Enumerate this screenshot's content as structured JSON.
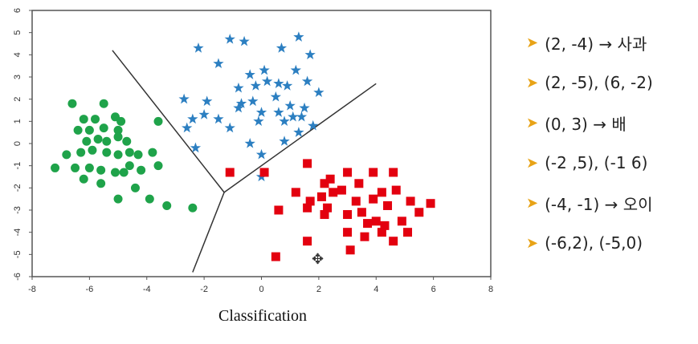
{
  "chart_data": {
    "type": "scatter",
    "title": "",
    "xlabel": "Classification",
    "ylabel": "",
    "xlim": [
      -8,
      8
    ],
    "ylim": [
      -6,
      6
    ],
    "xticks": [
      "-8",
      "-6",
      "-4",
      "-2",
      "0",
      "2",
      "4",
      "6",
      "8"
    ],
    "yticks": [
      "-6",
      "-5",
      "-4",
      "-3",
      "-2",
      "-1",
      "0",
      "1",
      "2",
      "3",
      "4",
      "5",
      "6"
    ],
    "grid": false,
    "series": [
      {
        "marker": "circle",
        "color": "#1fa34a",
        "points": [
          [
            -6.6,
            1.8
          ],
          [
            -5.5,
            1.8
          ],
          [
            -6.2,
            1.1
          ],
          [
            -5.8,
            1.1
          ],
          [
            -5.1,
            1.2
          ],
          [
            -6.4,
            0.6
          ],
          [
            -6.0,
            0.6
          ],
          [
            -5.5,
            0.7
          ],
          [
            -5.0,
            0.6
          ],
          [
            -6.1,
            0.1
          ],
          [
            -5.7,
            0.2
          ],
          [
            -5.4,
            0.1
          ],
          [
            -5.0,
            0.3
          ],
          [
            -4.7,
            0.1
          ],
          [
            -6.3,
            -0.4
          ],
          [
            -5.9,
            -0.3
          ],
          [
            -5.4,
            -0.4
          ],
          [
            -5.0,
            -0.5
          ],
          [
            -4.6,
            -0.4
          ],
          [
            -4.3,
            -0.5
          ],
          [
            -7.2,
            -1.1
          ],
          [
            -6.5,
            -1.1
          ],
          [
            -6.0,
            -1.1
          ],
          [
            -5.6,
            -1.2
          ],
          [
            -5.1,
            -1.3
          ],
          [
            -4.8,
            -1.3
          ],
          [
            -4.6,
            -1.0
          ],
          [
            -3.8,
            -0.4
          ],
          [
            -3.6,
            -1.0
          ],
          [
            -6.2,
            -1.6
          ],
          [
            -5.6,
            -1.8
          ],
          [
            -4.4,
            -2.0
          ],
          [
            -5.0,
            -2.5
          ],
          [
            -3.9,
            -2.5
          ],
          [
            -3.3,
            -2.8
          ],
          [
            -2.4,
            -2.9
          ],
          [
            -3.6,
            1.0
          ],
          [
            -6.8,
            -0.5
          ],
          [
            -4.9,
            1.0
          ],
          [
            -4.2,
            -1.2
          ]
        ]
      },
      {
        "marker": "star",
        "color": "#2c7fc1",
        "points": [
          [
            -1.1,
            4.7
          ],
          [
            -0.6,
            4.6
          ],
          [
            -2.2,
            4.3
          ],
          [
            -1.5,
            3.6
          ],
          [
            0.1,
            3.3
          ],
          [
            0.7,
            4.3
          ],
          [
            1.3,
            4.8
          ],
          [
            1.7,
            4.0
          ],
          [
            1.2,
            3.3
          ],
          [
            -0.4,
            3.1
          ],
          [
            0.2,
            2.8
          ],
          [
            0.6,
            2.7
          ],
          [
            0.9,
            2.6
          ],
          [
            -0.8,
            2.5
          ],
          [
            -0.2,
            2.6
          ],
          [
            1.6,
            2.8
          ],
          [
            2.0,
            2.3
          ],
          [
            -2.7,
            2.0
          ],
          [
            -1.9,
            1.9
          ],
          [
            -0.7,
            1.8
          ],
          [
            -0.3,
            1.9
          ],
          [
            0.5,
            2.1
          ],
          [
            1.0,
            1.7
          ],
          [
            1.5,
            1.6
          ],
          [
            -0.8,
            1.6
          ],
          [
            -2.0,
            1.3
          ],
          [
            0.0,
            1.4
          ],
          [
            0.6,
            1.4
          ],
          [
            1.1,
            1.2
          ],
          [
            1.4,
            1.2
          ],
          [
            -2.4,
            1.1
          ],
          [
            -1.5,
            1.1
          ],
          [
            -0.1,
            1.0
          ],
          [
            0.8,
            1.0
          ],
          [
            1.8,
            0.8
          ],
          [
            -2.6,
            0.7
          ],
          [
            -1.1,
            0.7
          ],
          [
            1.3,
            0.5
          ],
          [
            -0.4,
            0.0
          ],
          [
            0.8,
            0.1
          ],
          [
            -2.3,
            -0.2
          ],
          [
            0.0,
            -0.5
          ],
          [
            0.0,
            -1.5
          ]
        ]
      },
      {
        "marker": "square",
        "color": "#e3000f",
        "points": [
          [
            -1.1,
            -1.3
          ],
          [
            0.1,
            -1.3
          ],
          [
            1.6,
            -0.9
          ],
          [
            2.2,
            -1.8
          ],
          [
            3.0,
            -1.3
          ],
          [
            3.9,
            -1.3
          ],
          [
            4.6,
            -1.3
          ],
          [
            1.2,
            -2.2
          ],
          [
            2.4,
            -1.6
          ],
          [
            2.8,
            -2.1
          ],
          [
            3.4,
            -1.8
          ],
          [
            2.1,
            -2.4
          ],
          [
            2.5,
            -2.2
          ],
          [
            4.2,
            -2.2
          ],
          [
            4.7,
            -2.1
          ],
          [
            0.6,
            -3.0
          ],
          [
            1.7,
            -2.6
          ],
          [
            2.3,
            -2.9
          ],
          [
            3.3,
            -2.6
          ],
          [
            3.9,
            -2.5
          ],
          [
            4.4,
            -2.8
          ],
          [
            5.2,
            -2.6
          ],
          [
            5.9,
            -2.7
          ],
          [
            1.6,
            -2.9
          ],
          [
            2.2,
            -3.2
          ],
          [
            3.0,
            -3.2
          ],
          [
            3.5,
            -3.1
          ],
          [
            4.0,
            -3.5
          ],
          [
            4.3,
            -3.7
          ],
          [
            3.7,
            -3.6
          ],
          [
            4.9,
            -3.5
          ],
          [
            5.5,
            -3.1
          ],
          [
            3.0,
            -4.0
          ],
          [
            3.6,
            -4.2
          ],
          [
            4.2,
            -4.0
          ],
          [
            5.1,
            -4.0
          ],
          [
            4.6,
            -4.4
          ],
          [
            1.6,
            -4.4
          ],
          [
            3.1,
            -4.8
          ],
          [
            0.5,
            -5.1
          ]
        ]
      }
    ],
    "boundaries": [
      [
        [
          -5.2,
          4.2
        ],
        [
          -1.3,
          -2.2
        ]
      ],
      [
        [
          -1.3,
          -2.2
        ],
        [
          4.0,
          2.7
        ]
      ],
      [
        [
          -1.3,
          -2.2
        ],
        [
          -2.4,
          -5.8
        ]
      ]
    ]
  },
  "bullets": [
    {
      "text": "(2, -4) → 사과"
    },
    {
      "text": "(2, -5), (6, -2)"
    },
    {
      "text": "(0, 3) → 배"
    },
    {
      "text": "(-2 ,5), (-1 6)"
    },
    {
      "text": "(-4, -1) → 오이"
    },
    {
      "text": "(-6,2), (-5,0)"
    }
  ],
  "icons": {
    "bullet": "arrowhead-bullet-icon",
    "cursor": "move-cursor-icon"
  }
}
